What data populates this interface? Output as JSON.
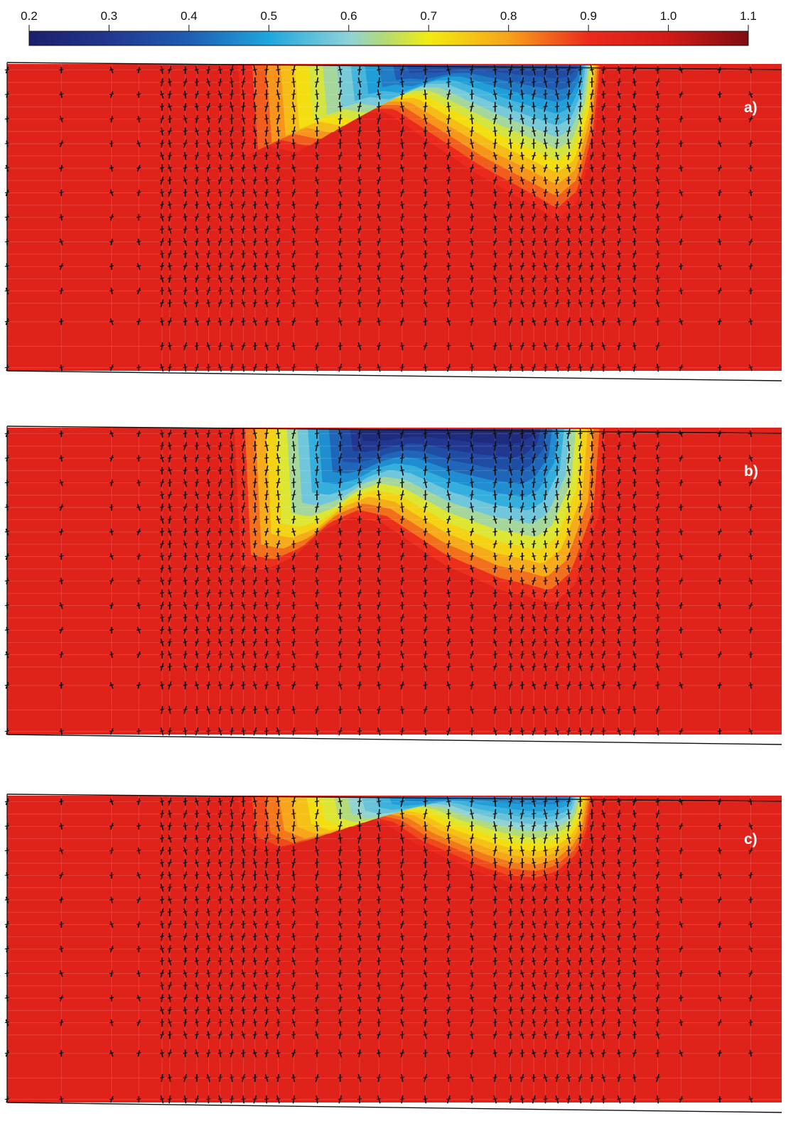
{
  "colorbar": {
    "ticks": [
      "0.2",
      "0.3",
      "0.4",
      "0.5",
      "0.6",
      "0.7",
      "0.8",
      "0.9",
      "1.0",
      "1.1"
    ],
    "stops": [
      {
        "value": 0.2,
        "color": "#1b1f6b"
      },
      {
        "value": 0.3,
        "color": "#22378f"
      },
      {
        "value": 0.4,
        "color": "#1f5db3"
      },
      {
        "value": 0.5,
        "color": "#1fa6de"
      },
      {
        "value": 0.6,
        "color": "#8ed2d8"
      },
      {
        "value": 0.65,
        "color": "#b8dc6a"
      },
      {
        "value": 0.7,
        "color": "#f2ec10"
      },
      {
        "value": 0.8,
        "color": "#f7a21b"
      },
      {
        "value": 0.9,
        "color": "#ec2a1c"
      },
      {
        "value": 1.0,
        "color": "#d21a17"
      },
      {
        "value": 1.1,
        "color": "#7f0d10"
      }
    ]
  },
  "chart_data": [
    {
      "type": "heatmap",
      "panel_label": "a)",
      "background_value": 0.95,
      "depleted_zone": {
        "x_start": 0.28,
        "x_end": 0.77
      },
      "profile": [
        {
          "x": 0.28,
          "depth": 0.28
        },
        {
          "x": 0.32,
          "depth": 0.24
        },
        {
          "x": 0.36,
          "depth": 0.26
        },
        {
          "x": 0.4,
          "depth": 0.2
        },
        {
          "x": 0.44,
          "depth": 0.14
        },
        {
          "x": 0.48,
          "depth": 0.14
        },
        {
          "x": 0.52,
          "depth": 0.2
        },
        {
          "x": 0.56,
          "depth": 0.26
        },
        {
          "x": 0.6,
          "depth": 0.32
        },
        {
          "x": 0.64,
          "depth": 0.37
        },
        {
          "x": 0.68,
          "depth": 0.42
        },
        {
          "x": 0.71,
          "depth": 0.46
        },
        {
          "x": 0.74,
          "depth": 0.4
        },
        {
          "x": 0.77,
          "depth": 0.12
        }
      ],
      "minimum": {
        "x": 0.71,
        "value": 0.35
      },
      "secondary_minimum": {
        "x": 0.33,
        "value": 0.55
      }
    },
    {
      "type": "heatmap",
      "panel_label": "b)",
      "background_value": 0.95,
      "depleted_zone": {
        "x_start": 0.28,
        "x_end": 0.78
      },
      "profile": [
        {
          "x": 0.28,
          "depth": 0.4
        },
        {
          "x": 0.32,
          "depth": 0.42
        },
        {
          "x": 0.36,
          "depth": 0.38
        },
        {
          "x": 0.4,
          "depth": 0.3
        },
        {
          "x": 0.44,
          "depth": 0.26
        },
        {
          "x": 0.48,
          "depth": 0.28
        },
        {
          "x": 0.52,
          "depth": 0.34
        },
        {
          "x": 0.56,
          "depth": 0.4
        },
        {
          "x": 0.6,
          "depth": 0.44
        },
        {
          "x": 0.64,
          "depth": 0.48
        },
        {
          "x": 0.68,
          "depth": 0.5
        },
        {
          "x": 0.71,
          "depth": 0.52
        },
        {
          "x": 0.74,
          "depth": 0.46
        },
        {
          "x": 0.78,
          "depth": 0.2
        }
      ],
      "minimum": {
        "x": 0.6,
        "value": 0.25
      },
      "secondary_minimum": {
        "x": 0.35,
        "value": 0.3
      }
    },
    {
      "type": "heatmap",
      "panel_label": "c)",
      "background_value": 0.95,
      "depleted_zone": {
        "x_start": 0.28,
        "x_end": 0.76
      },
      "profile": [
        {
          "x": 0.28,
          "depth": 0.12
        },
        {
          "x": 0.32,
          "depth": 0.16
        },
        {
          "x": 0.36,
          "depth": 0.14
        },
        {
          "x": 0.4,
          "depth": 0.1
        },
        {
          "x": 0.44,
          "depth": 0.06
        },
        {
          "x": 0.48,
          "depth": 0.08
        },
        {
          "x": 0.52,
          "depth": 0.14
        },
        {
          "x": 0.56,
          "depth": 0.18
        },
        {
          "x": 0.6,
          "depth": 0.22
        },
        {
          "x": 0.64,
          "depth": 0.25
        },
        {
          "x": 0.68,
          "depth": 0.26
        },
        {
          "x": 0.71,
          "depth": 0.24
        },
        {
          "x": 0.74,
          "depth": 0.18
        },
        {
          "x": 0.76,
          "depth": 0.06
        }
      ],
      "minimum": {
        "x": 0.7,
        "value": 0.45
      },
      "secondary_minimum": {
        "x": 0.33,
        "value": 0.6
      }
    }
  ]
}
